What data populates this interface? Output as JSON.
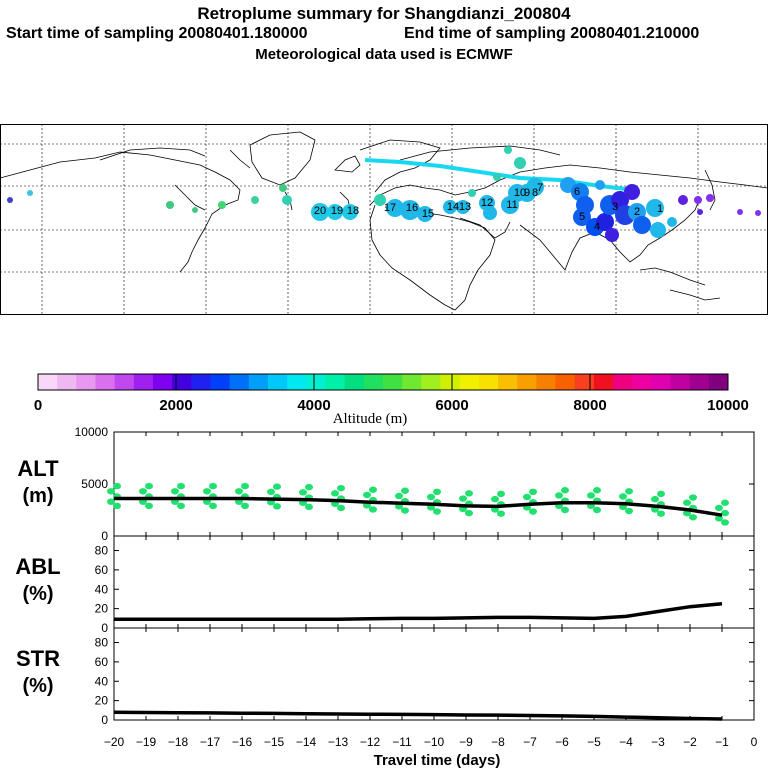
{
  "header": {
    "title": "Retroplume summary for Shangdianzi_200804",
    "start_label": "Start time of sampling 20080401.180000",
    "end_label": "End time of sampling 20080401.210000",
    "met_label": "Meteorological data used is ECMWF"
  },
  "colorbar": {
    "ticks": [
      "0",
      "2000",
      "4000",
      "6000",
      "8000",
      "10000"
    ],
    "label": "Altitude (m)",
    "colors": [
      "#f8d8f8",
      "#f0b8f0",
      "#e898f0",
      "#d870f0",
      "#c048f0",
      "#a020f0",
      "#8000f0",
      "#4000e0",
      "#2020f0",
      "#0040f8",
      "#0070f8",
      "#00a0f8",
      "#00c8f8",
      "#00e8f0",
      "#00f0d0",
      "#00f0a8",
      "#00e080",
      "#20e060",
      "#40e040",
      "#70e830",
      "#a0f020",
      "#d0f000",
      "#f0f000",
      "#f8e000",
      "#f8c000",
      "#f8a000",
      "#f88000",
      "#f86000",
      "#f84020",
      "#f01020",
      "#f00080",
      "#f000a0",
      "#e000b0",
      "#c000a0",
      "#a00090",
      "#800080"
    ]
  },
  "map_labels": [
    "20",
    "19",
    "18",
    "17",
    "16",
    "15",
    "14",
    "13",
    "12",
    "11",
    "10",
    "9",
    "8",
    "7",
    "6",
    "5",
    "4",
    "3",
    "2",
    "1"
  ],
  "chart_data": [
    {
      "type": "line",
      "name": "ALT",
      "panel_label": "ALT",
      "unit_label": "(m)",
      "x": [
        -20,
        -19,
        -18,
        -17,
        -16,
        -15,
        -14,
        -13,
        -12,
        -11,
        -10,
        -9,
        -8,
        -7,
        -6,
        -5,
        -4,
        -3,
        -2,
        -1
      ],
      "y": [
        3600,
        3600,
        3600,
        3600,
        3600,
        3550,
        3500,
        3400,
        3250,
        3150,
        3050,
        2900,
        2850,
        3050,
        3200,
        3200,
        3100,
        2850,
        2500,
        2000
      ],
      "yticks": [
        "0",
        "5000",
        "10000"
      ],
      "ylim": [
        0,
        10000
      ],
      "scatter_color": "#22e070"
    },
    {
      "type": "line",
      "name": "ABL",
      "panel_label": "ABL",
      "unit_label": "(%)",
      "x": [
        -20,
        -19,
        -18,
        -17,
        -16,
        -15,
        -14,
        -13,
        -12,
        -11,
        -10,
        -9,
        -8,
        -7,
        -6,
        -5,
        -4,
        -3,
        -2,
        -1
      ],
      "y": [
        9,
        9,
        9,
        9,
        9,
        9,
        9,
        9,
        9.5,
        10,
        10,
        10.5,
        11,
        11,
        10.5,
        10,
        12,
        17,
        22,
        25
      ],
      "yticks": [
        "0",
        "20",
        "40",
        "60",
        "80"
      ],
      "ylim": [
        0,
        95
      ]
    },
    {
      "type": "line",
      "name": "STR",
      "panel_label": "STR",
      "unit_label": "(%)",
      "x": [
        -20,
        -19,
        -18,
        -17,
        -16,
        -15,
        -14,
        -13,
        -12,
        -11,
        -10,
        -9,
        -8,
        -7,
        -6,
        -5,
        -4,
        -3,
        -2,
        -1
      ],
      "y": [
        8,
        7.8,
        7.5,
        7.3,
        7,
        6.8,
        6.5,
        6.2,
        6,
        5.8,
        5.5,
        5.2,
        5,
        4.6,
        4.3,
        3.8,
        3,
        2.3,
        1.5,
        1
      ],
      "yticks": [
        "0",
        "20",
        "40",
        "60",
        "80"
      ],
      "ylim": [
        0,
        95
      ]
    }
  ],
  "xaxis": {
    "ticks": [
      "-20",
      "-19",
      "-18",
      "-17",
      "-16",
      "-15",
      "-14",
      "-13",
      "-12",
      "-11",
      "-10",
      "-9",
      "-8",
      "-7",
      "-6",
      "-5",
      "-4",
      "-3",
      "-2",
      "-1",
      "0"
    ],
    "label": "Travel time (days)"
  }
}
